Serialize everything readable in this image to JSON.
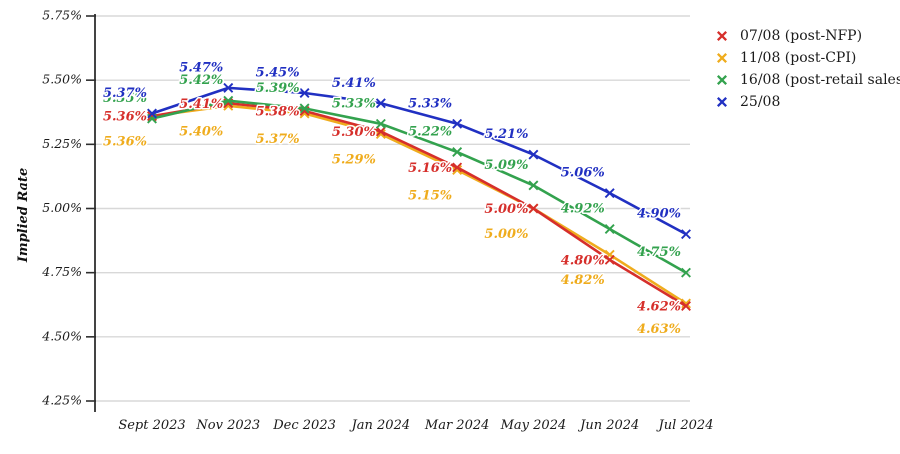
{
  "chart_data": {
    "type": "line",
    "title": "",
    "xlabel": "",
    "ylabel": "Implied Rate",
    "categories": [
      "Sept 2023",
      "Nov 2023",
      "Dec 2023",
      "Jan 2024",
      "Mar 2024",
      "May 2024",
      "Jun 2024",
      "Jul 2024"
    ],
    "series": [
      {
        "name": "07/08 (post-NFP)",
        "color": "#d62f2b",
        "values": [
          5.36,
          5.41,
          5.38,
          5.3,
          5.16,
          5.0,
          4.8,
          4.62
        ]
      },
      {
        "name": "11/08 (post-CPI)",
        "color": "#efac1d",
        "values": [
          5.36,
          5.4,
          5.37,
          5.29,
          5.15,
          5.0,
          4.82,
          4.63
        ]
      },
      {
        "name": "16/08 (post-retail sales)",
        "color": "#33a24e",
        "values": [
          5.35,
          5.42,
          5.39,
          5.33,
          5.22,
          5.09,
          4.92,
          4.75
        ]
      },
      {
        "name": "25/08",
        "color": "#2130c2",
        "values": [
          5.37,
          5.47,
          5.45,
          5.41,
          5.33,
          5.21,
          5.06,
          4.9
        ]
      }
    ],
    "y_ticks": [
      "5.75%",
      "5.50%",
      "5.25%",
      "5.00%",
      "4.75%",
      "4.50%",
      "4.25%"
    ],
    "ylim": [
      4.25,
      5.75
    ],
    "grid": "horizontal",
    "grid_color": "#d8d8d8",
    "axis_color": "#2f2f2f",
    "marker": "x",
    "legend_position": "top-right"
  }
}
